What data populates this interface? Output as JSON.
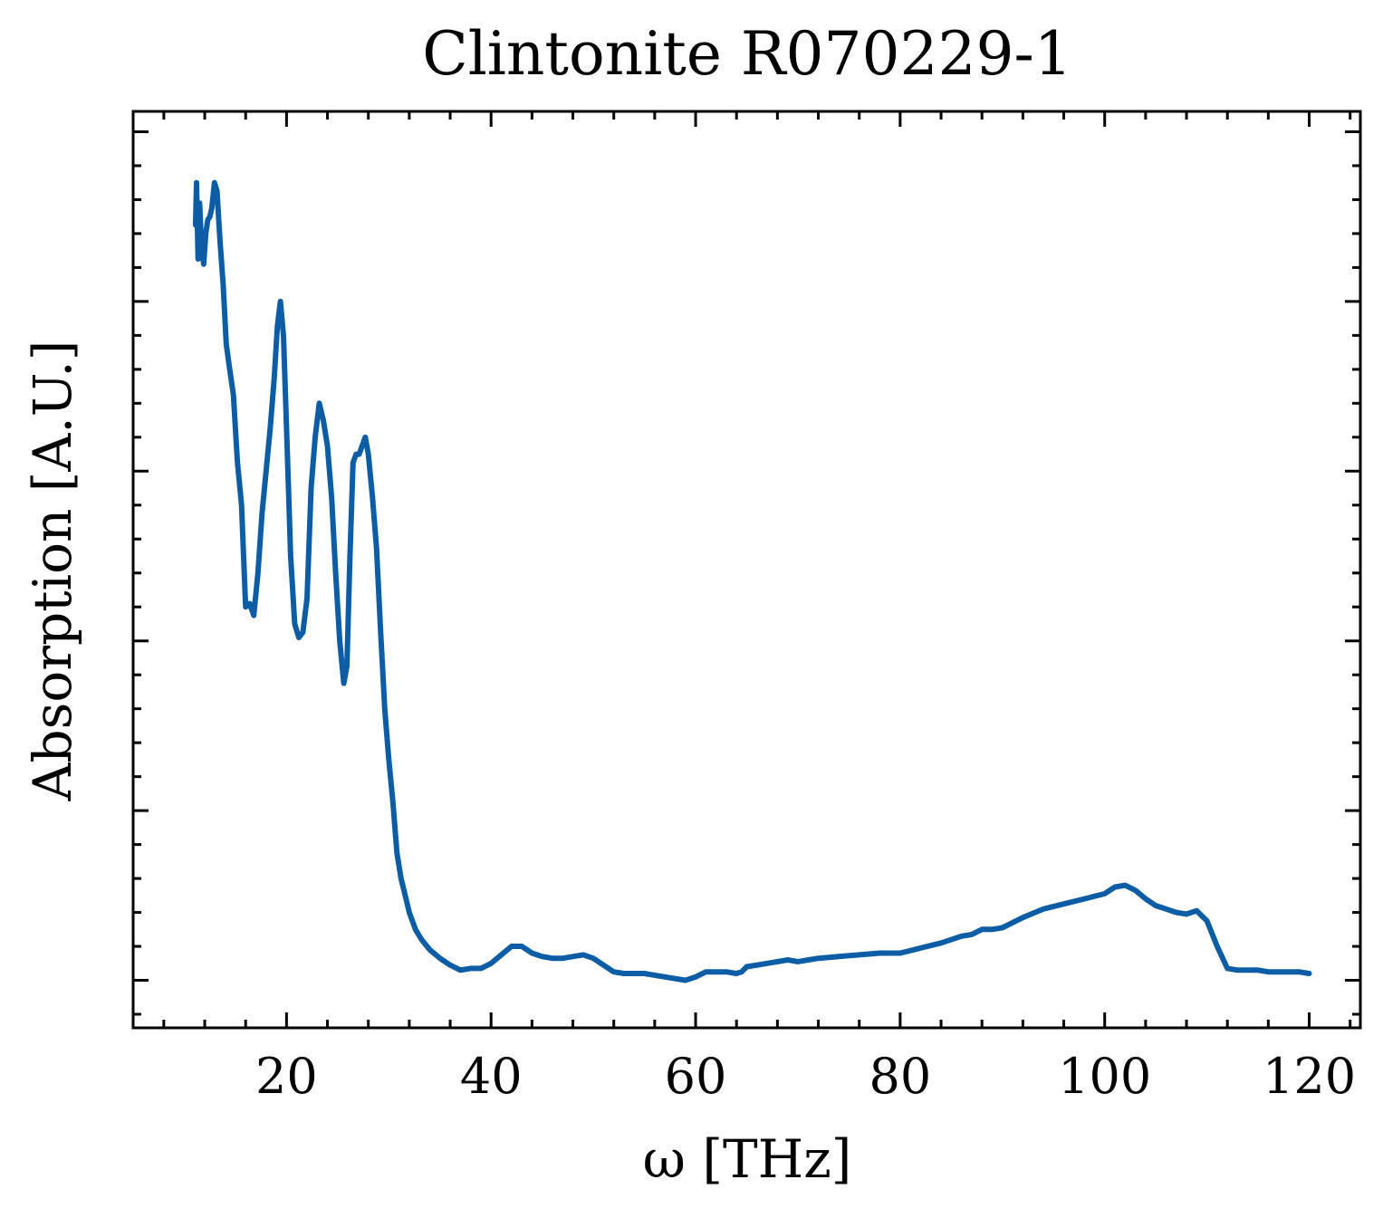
{
  "chart_data": {
    "type": "line",
    "title": "Clintonite R070229-1",
    "xlabel": "ω [THz]",
    "ylabel": "Absorption [A.U.]",
    "xlim": [
      5,
      125
    ],
    "ylim": [
      -0.28,
      5.12
    ],
    "x_ticks": [
      20,
      40,
      60,
      80,
      100,
      120
    ],
    "x_tick_labels": [
      "20",
      "40",
      "60",
      "80",
      "100",
      "120"
    ],
    "x_minor_step": 4,
    "y_ticks": [
      0,
      1,
      2,
      3,
      4,
      5
    ],
    "y_minor_step": 0.2,
    "y_tick_labels_shown": false,
    "grid": false,
    "legend": "none",
    "series": [
      {
        "color": "#0c5da5",
        "x": [
          11.1,
          11.2,
          11.35,
          11.5,
          11.7,
          11.9,
          12.1,
          12.3,
          12.5,
          12.7,
          12.95,
          13.2,
          13.5,
          13.8,
          14.1,
          14.4,
          14.8,
          15.2,
          15.6,
          16.0,
          16.4,
          16.8,
          17.2,
          17.6,
          18.0,
          18.4,
          18.8,
          19.1,
          19.4,
          19.7,
          20.0,
          20.4,
          20.8,
          21.2,
          21.6,
          22.0,
          22.4,
          22.8,
          23.2,
          23.6,
          24.0,
          24.4,
          24.8,
          25.2,
          25.6,
          25.9,
          26.2,
          26.5,
          26.8,
          27.1,
          27.4,
          27.7,
          28.0,
          28.4,
          28.8,
          29.2,
          29.6,
          30.0,
          30.4,
          30.8,
          31.2,
          31.6,
          32.0,
          32.6,
          33.2,
          34.0,
          35.0,
          36.0,
          37.0,
          38.0,
          39.0,
          40.0,
          41.0,
          42.0,
          43.0,
          44.0,
          45.0,
          46.0,
          47.0,
          48.0,
          49.0,
          50.0,
          51.0,
          52.0,
          53.0,
          54.0,
          55.0,
          56.0,
          57.0,
          58.0,
          59.0,
          59.5,
          60.0,
          61.0,
          62.0,
          63.0,
          64.0,
          64.5,
          65.0,
          66.0,
          67.0,
          68.0,
          69.0,
          70.0,
          72.0,
          74.0,
          76.0,
          78.0,
          80.0,
          82.0,
          84.0,
          86.0,
          87.0,
          88.0,
          89.0,
          90.0,
          92.0,
          94.0,
          96.0,
          98.0,
          100.0,
          101.0,
          102.0,
          103.0,
          104.0,
          105.0,
          106.0,
          107.0,
          108.0,
          109.0,
          110.0,
          111.0,
          112.0,
          113.0,
          114.0,
          115.0,
          116.0,
          117.0,
          118.0,
          119.0,
          120.0
        ],
        "y": [
          4.45,
          4.7,
          4.25,
          4.58,
          4.3,
          4.22,
          4.4,
          4.48,
          4.5,
          4.55,
          4.7,
          4.65,
          4.35,
          4.1,
          3.75,
          3.62,
          3.45,
          3.05,
          2.8,
          2.2,
          2.22,
          2.15,
          2.4,
          2.75,
          3.0,
          3.25,
          3.55,
          3.85,
          4.0,
          3.8,
          3.25,
          2.5,
          2.1,
          2.02,
          2.05,
          2.25,
          2.9,
          3.2,
          3.4,
          3.3,
          3.15,
          2.85,
          2.4,
          2.0,
          1.75,
          1.85,
          2.5,
          3.05,
          3.1,
          3.1,
          3.15,
          3.2,
          3.1,
          2.85,
          2.55,
          2.05,
          1.6,
          1.3,
          1.05,
          0.75,
          0.6,
          0.5,
          0.4,
          0.3,
          0.24,
          0.18,
          0.13,
          0.09,
          0.06,
          0.07,
          0.07,
          0.1,
          0.15,
          0.2,
          0.2,
          0.16,
          0.14,
          0.13,
          0.13,
          0.14,
          0.15,
          0.13,
          0.09,
          0.05,
          0.04,
          0.04,
          0.04,
          0.03,
          0.02,
          0.01,
          0.0,
          0.01,
          0.02,
          0.05,
          0.05,
          0.05,
          0.04,
          0.05,
          0.08,
          0.09,
          0.1,
          0.11,
          0.12,
          0.11,
          0.13,
          0.14,
          0.15,
          0.16,
          0.16,
          0.19,
          0.22,
          0.26,
          0.27,
          0.3,
          0.3,
          0.31,
          0.37,
          0.42,
          0.45,
          0.48,
          0.51,
          0.55,
          0.56,
          0.53,
          0.48,
          0.44,
          0.42,
          0.4,
          0.39,
          0.41,
          0.35,
          0.2,
          0.07,
          0.06,
          0.06,
          0.06,
          0.05,
          0.05,
          0.05,
          0.05,
          0.04
        ]
      }
    ]
  }
}
